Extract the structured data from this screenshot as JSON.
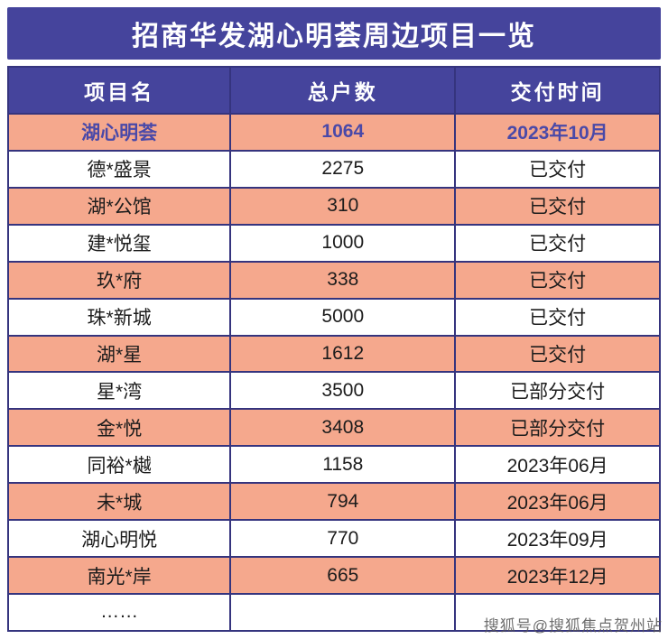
{
  "title": "招商华发湖心明荟周边项目一览",
  "watermark": "搜狐号@搜狐焦点贺州站",
  "colors": {
    "header_bg": "#45449c",
    "row_highlight_bg": "#f5a88d",
    "row_alt_bg": "#ffffff",
    "border": "#35347e",
    "highlight_text": "#4a49a8",
    "body_text": "#1c1c1c"
  },
  "chart_data": {
    "type": "table",
    "title": "招商华发湖心明荟周边项目一览",
    "columns": [
      "项目名",
      "总户数",
      "交付时间"
    ],
    "highlight_row_index": 0,
    "rows": [
      [
        "湖心明荟",
        "1064",
        "2023年10月"
      ],
      [
        "德*盛景",
        "2275",
        "已交付"
      ],
      [
        "湖*公馆",
        "310",
        "已交付"
      ],
      [
        "建*悦玺",
        "1000",
        "已交付"
      ],
      [
        "玖*府",
        "338",
        "已交付"
      ],
      [
        "珠*新城",
        "5000",
        "已交付"
      ],
      [
        "湖*星",
        "1612",
        "已交付"
      ],
      [
        "星*湾",
        "3500",
        "已部分交付"
      ],
      [
        "金*悦",
        "3408",
        "已部分交付"
      ],
      [
        "同裕*樾",
        "1158",
        "2023年06月"
      ],
      [
        "未*城",
        "794",
        "2023年06月"
      ],
      [
        "湖心明悦",
        "770",
        "2023年09月"
      ],
      [
        "南光*岸",
        "665",
        "2023年12月"
      ],
      [
        "……",
        "",
        ""
      ]
    ]
  }
}
